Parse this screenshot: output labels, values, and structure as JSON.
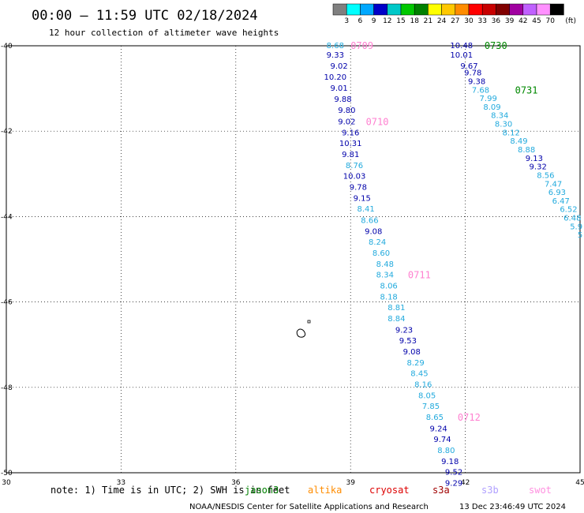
{
  "header": {
    "title": "00:00 – 11:59 UTC 02/18/2024",
    "subtitle": "12 hour collection of altimeter wave heights"
  },
  "colorbar": {
    "unit": "(ft)",
    "labels": [
      "3",
      "6",
      "9",
      "12",
      "15",
      "18",
      "21",
      "24",
      "27",
      "30",
      "33",
      "36",
      "39",
      "42",
      "45",
      "70"
    ],
    "colors": [
      "#808080",
      "#00ffff",
      "#00a8ff",
      "#0000c8",
      "#00c8c8",
      "#00c800",
      "#008000",
      "#ffff00",
      "#ffc800",
      "#ff8c00",
      "#ff0000",
      "#c80000",
      "#800000",
      "#a000a0",
      "#c060ff",
      "#ff90ff",
      "#000000"
    ]
  },
  "axes": {
    "x_ticks": [
      "30",
      "33",
      "36",
      "39",
      "42",
      "45"
    ],
    "y_ticks": [
      "-40",
      "-42",
      "-44",
      "-46",
      "-48",
      "-50"
    ]
  },
  "colors": {
    "dark": "#0000aa",
    "cyan": "#22aadd",
    "pink": "#ff80d0",
    "green": "#008800"
  },
  "chart_data": {
    "type": "scatter",
    "x_range": [
      30,
      45
    ],
    "y_range": [
      -50,
      -40
    ],
    "tracks": [
      {
        "points": [
          {
            "lon": 38.6,
            "lat": -40.0,
            "value": "8.68",
            "color": "cyan"
          },
          {
            "lon": 38.6,
            "lat": -40.22,
            "value": "9.33",
            "color": "dark"
          },
          {
            "lon": 38.7,
            "lat": -40.48,
            "value": "9.02",
            "color": "dark"
          },
          {
            "lon": 38.6,
            "lat": -40.74,
            "value": "10.20",
            "color": "dark"
          },
          {
            "lon": 38.7,
            "lat": -41.0,
            "value": "9.01",
            "color": "dark"
          },
          {
            "lon": 38.8,
            "lat": -41.26,
            "value": "9.88",
            "color": "dark"
          },
          {
            "lon": 38.9,
            "lat": -41.52,
            "value": "9.80",
            "color": "dark"
          },
          {
            "lon": 38.9,
            "lat": -41.78,
            "value": "9.02",
            "color": "dark"
          },
          {
            "lon": 39.0,
            "lat": -42.04,
            "value": "9.16",
            "color": "dark"
          },
          {
            "lon": 39.0,
            "lat": -42.29,
            "value": "10.31",
            "color": "dark"
          },
          {
            "lon": 39.0,
            "lat": -42.55,
            "value": "9.81",
            "color": "dark"
          },
          {
            "lon": 39.1,
            "lat": -42.81,
            "value": "8.76",
            "color": "cyan"
          },
          {
            "lon": 39.1,
            "lat": -43.06,
            "value": "10.03",
            "color": "dark"
          },
          {
            "lon": 39.2,
            "lat": -43.32,
            "value": "9.78",
            "color": "dark"
          },
          {
            "lon": 39.3,
            "lat": -43.58,
            "value": "9.15",
            "color": "dark"
          },
          {
            "lon": 39.4,
            "lat": -43.83,
            "value": "8.41",
            "color": "cyan"
          },
          {
            "lon": 39.5,
            "lat": -44.09,
            "value": "8.66",
            "color": "cyan"
          },
          {
            "lon": 39.6,
            "lat": -44.35,
            "value": "9.08",
            "color": "dark"
          },
          {
            "lon": 39.7,
            "lat": -44.6,
            "value": "8.24",
            "color": "cyan"
          },
          {
            "lon": 39.8,
            "lat": -44.86,
            "value": "8.60",
            "color": "cyan"
          },
          {
            "lon": 39.9,
            "lat": -45.12,
            "value": "8.48",
            "color": "cyan"
          },
          {
            "lon": 39.9,
            "lat": -45.37,
            "value": "8.34",
            "color": "cyan"
          },
          {
            "lon": 40.0,
            "lat": -45.63,
            "value": "8.06",
            "color": "cyan"
          },
          {
            "lon": 40.0,
            "lat": -45.89,
            "value": "8.18",
            "color": "cyan"
          },
          {
            "lon": 40.2,
            "lat": -46.14,
            "value": "8.81",
            "color": "cyan"
          },
          {
            "lon": 40.2,
            "lat": -46.4,
            "value": "8.84",
            "color": "cyan"
          },
          {
            "lon": 40.4,
            "lat": -46.66,
            "value": "9.23",
            "color": "dark"
          },
          {
            "lon": 40.5,
            "lat": -46.91,
            "value": "9.53",
            "color": "dark"
          },
          {
            "lon": 40.6,
            "lat": -47.17,
            "value": "9.08",
            "color": "dark"
          },
          {
            "lon": 40.7,
            "lat": -47.43,
            "value": "8.29",
            "color": "cyan"
          },
          {
            "lon": 40.8,
            "lat": -47.68,
            "value": "8.45",
            "color": "cyan"
          },
          {
            "lon": 40.9,
            "lat": -47.94,
            "value": "8.16",
            "color": "cyan"
          },
          {
            "lon": 41.0,
            "lat": -48.2,
            "value": "8.05",
            "color": "cyan"
          },
          {
            "lon": 41.1,
            "lat": -48.45,
            "value": "7.85",
            "color": "cyan"
          },
          {
            "lon": 41.2,
            "lat": -48.71,
            "value": "8.65",
            "color": "cyan"
          },
          {
            "lon": 41.3,
            "lat": -48.97,
            "value": "9.24",
            "color": "dark"
          },
          {
            "lon": 41.4,
            "lat": -49.22,
            "value": "9.74",
            "color": "dark"
          },
          {
            "lon": 41.5,
            "lat": -49.48,
            "value": "8.80",
            "color": "cyan"
          },
          {
            "lon": 41.6,
            "lat": -49.74,
            "value": "9.18",
            "color": "dark"
          },
          {
            "lon": 41.7,
            "lat": -49.99,
            "value": "9.52",
            "color": "dark"
          },
          {
            "lon": 41.7,
            "lat": -50.25,
            "value": "9.29",
            "color": "dark"
          }
        ],
        "pass_labels": [
          {
            "text": "0709",
            "lon": 39.0,
            "lat": -40.0,
            "color": "pink"
          },
          {
            "text": "0710",
            "lon": 39.4,
            "lat": -41.78,
            "color": "pink"
          },
          {
            "text": "0711",
            "lon": 40.5,
            "lat": -45.37,
            "color": "pink"
          },
          {
            "text": "0712",
            "lon": 41.8,
            "lat": -48.71,
            "color": "pink"
          }
        ]
      },
      {
        "points": [
          {
            "lon": 41.9,
            "lat": -40.0,
            "value": "10.48",
            "color": "dark"
          },
          {
            "lon": 41.9,
            "lat": -40.22,
            "value": "10.01",
            "color": "dark"
          },
          {
            "lon": 42.1,
            "lat": -40.48,
            "value": "9.67",
            "color": "dark"
          },
          {
            "lon": 42.2,
            "lat": -40.64,
            "value": "9.78",
            "color": "dark"
          },
          {
            "lon": 42.3,
            "lat": -40.84,
            "value": "9.38",
            "color": "dark"
          },
          {
            "lon": 42.4,
            "lat": -41.04,
            "value": "7.68",
            "color": "cyan"
          },
          {
            "lon": 42.6,
            "lat": -41.24,
            "value": "7.99",
            "color": "cyan"
          },
          {
            "lon": 42.7,
            "lat": -41.44,
            "value": "8.09",
            "color": "cyan"
          },
          {
            "lon": 42.9,
            "lat": -41.64,
            "value": "8.34",
            "color": "cyan"
          },
          {
            "lon": 43.0,
            "lat": -41.84,
            "value": "8.30",
            "color": "cyan"
          },
          {
            "lon": 43.2,
            "lat": -42.04,
            "value": "8.12",
            "color": "cyan"
          },
          {
            "lon": 43.4,
            "lat": -42.24,
            "value": "8.49",
            "color": "cyan"
          },
          {
            "lon": 43.6,
            "lat": -42.44,
            "value": "8.88",
            "color": "cyan"
          },
          {
            "lon": 43.8,
            "lat": -42.64,
            "value": "9.13",
            "color": "dark"
          },
          {
            "lon": 43.9,
            "lat": -42.84,
            "value": "9.32",
            "color": "dark"
          },
          {
            "lon": 44.1,
            "lat": -43.04,
            "value": "8.56",
            "color": "cyan"
          },
          {
            "lon": 44.3,
            "lat": -43.24,
            "value": "7.47",
            "color": "cyan"
          },
          {
            "lon": 44.4,
            "lat": -43.44,
            "value": "6.93",
            "color": "cyan"
          },
          {
            "lon": 44.5,
            "lat": -43.64,
            "value": "6.47",
            "color": "cyan"
          },
          {
            "lon": 44.7,
            "lat": -43.84,
            "value": "6.52",
            "color": "cyan"
          },
          {
            "lon": 44.8,
            "lat": -44.04,
            "value": "6.48",
            "color": "cyan"
          },
          {
            "lon": 44.9,
            "lat": -44.24,
            "value": "5.9",
            "color": "cyan"
          },
          {
            "lon": 45.0,
            "lat": -44.44,
            "value": "5",
            "color": "cyan"
          }
        ],
        "pass_labels": [
          {
            "text": "0730",
            "lon": 42.5,
            "lat": -40.0,
            "color": "green"
          },
          {
            "text": "0731",
            "lon": 43.3,
            "lat": -41.04,
            "color": "green"
          }
        ]
      }
    ]
  },
  "note": "note:  1) Time is in UTC; 2) SWH is in feet",
  "satellites": [
    {
      "name": "jason3",
      "color": "#008000"
    },
    {
      "name": "altika",
      "color": "#ff8c00"
    },
    {
      "name": "cryosat",
      "color": "#dd0000"
    },
    {
      "name": "s3a",
      "color": "#a00000"
    },
    {
      "name": "s3b",
      "color": "#b0a0ff"
    },
    {
      "name": "swot",
      "color": "#ff90e0"
    }
  ],
  "footer": {
    "org": "NOAA/NESDIS Center for Satellite Applications and Research",
    "timestamp": "13 Dec 23:46:49 UTC 2024"
  }
}
